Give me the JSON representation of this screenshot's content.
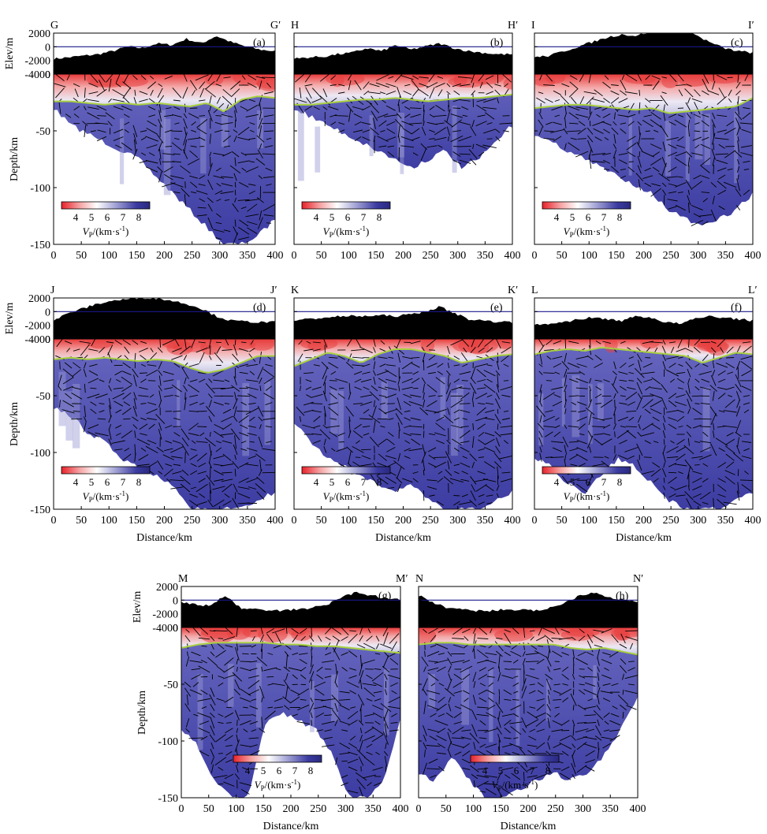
{
  "figure": {
    "axis_labels": {
      "elev": "Elev/m",
      "depth": "Depth/km",
      "distance": "Distance/km"
    },
    "elev_ticks": [
      "2000",
      "0",
      "-2000",
      "-4000"
    ],
    "depth_ticks": [
      "0",
      "-50",
      "-100",
      "-150"
    ],
    "distance_ticks": [
      "0",
      "50",
      "100",
      "150",
      "200",
      "250",
      "300",
      "350",
      "400"
    ],
    "colorbar": {
      "ticks": [
        "4",
        "5",
        "6",
        "7",
        "8"
      ],
      "label_prefix": "V",
      "label_sub": "P",
      "label_suffix": "/(km·s",
      "label_sup": "-1",
      "label_close": ")",
      "colors": [
        "#e8222a",
        "#f5a0a0",
        "#ffffff",
        "#a8a8d8",
        "#3a3aa0",
        "#2a2a80"
      ]
    },
    "colors": {
      "velocity_fill": "#5050b0",
      "velocity_deep": "#3c3ca0",
      "crust_red": "#e84040",
      "moho_line": "#a8d040",
      "topo": "#000000",
      "sea_level": "#1a1a8c"
    },
    "panels": [
      {
        "id": "a",
        "label": "(a)",
        "start": "G",
        "end": "G′"
      },
      {
        "id": "b",
        "label": "(b)",
        "start": "H",
        "end": "H′"
      },
      {
        "id": "c",
        "label": "(c)",
        "start": "I",
        "end": "I′"
      },
      {
        "id": "d",
        "label": "(d)",
        "start": "J",
        "end": "J′"
      },
      {
        "id": "e",
        "label": "(e)",
        "start": "K",
        "end": "K′"
      },
      {
        "id": "f",
        "label": "(f)",
        "start": "L",
        "end": "L′"
      },
      {
        "id": "g",
        "label": "(g)",
        "start": "M",
        "end": "M′"
      },
      {
        "id": "h",
        "label": "(h)",
        "start": "N",
        "end": "N′"
      }
    ]
  }
}
